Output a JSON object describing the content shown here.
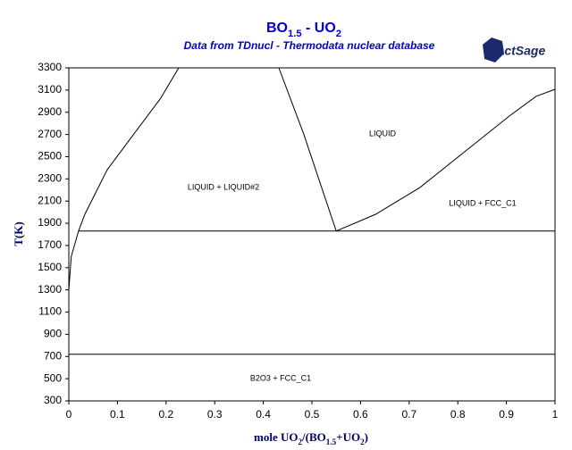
{
  "chart_data": {
    "type": "line",
    "title_parts": [
      {
        "text": "BO"
      },
      {
        "text": "1.5",
        "sub": true
      },
      {
        "text": " - UO"
      },
      {
        "text": "2",
        "sub": true
      }
    ],
    "subtitle": "Data from TDnucl - Thermodata nuclear database",
    "logo": "FactSage",
    "ylabel": "T(K)",
    "xlabel_parts": [
      {
        "text": "mole UO"
      },
      {
        "text": "2",
        "sub": true
      },
      {
        "text": "/(BO"
      },
      {
        "text": "1.5",
        "sub": true
      },
      {
        "text": "+UO"
      },
      {
        "text": "2",
        "sub": true
      },
      {
        "text": ")"
      }
    ],
    "xlim": [
      0,
      1
    ],
    "ylim": [
      300,
      3300
    ],
    "xticks": [
      0,
      0.1,
      0.2,
      0.3,
      0.4,
      0.5,
      0.6,
      0.7,
      0.8,
      0.9,
      1
    ],
    "yticks": [
      300,
      500,
      700,
      900,
      1100,
      1300,
      1500,
      1700,
      1900,
      2100,
      2300,
      2500,
      2700,
      2900,
      3100,
      3300
    ],
    "annotations": [
      "LIQUID",
      "LIQUID + LIQUID#2",
      "LIQUID + FCC_C1",
      "B2O3 + FCC_C1"
    ],
    "series": [
      {
        "color": "#000000",
        "x": [
          0,
          0.005,
          0.02,
          0.033,
          0.079,
          0.134,
          0.189,
          0.226
        ],
        "values": [
          1300,
          1600,
          1830,
          1981,
          2383,
          2705,
          3027,
          3300
        ]
      },
      {
        "color": "#000000",
        "x": [
          0.432,
          0.483,
          0.55
        ],
        "values": [
          3300,
          2705,
          1830
        ]
      },
      {
        "color": "#000000",
        "x": [
          0.55,
          0.631,
          0.722,
          0.814,
          0.906,
          0.961,
          1
        ],
        "values": [
          1830,
          1981,
          2222,
          2544,
          2866,
          3043,
          3107
        ]
      },
      {
        "color": "#000000",
        "x": [
          0.02,
          1
        ],
        "values": [
          1830,
          1830
        ]
      },
      {
        "color": "#000000",
        "x": [
          0,
          1
        ],
        "values": [
          720,
          720
        ]
      }
    ]
  }
}
